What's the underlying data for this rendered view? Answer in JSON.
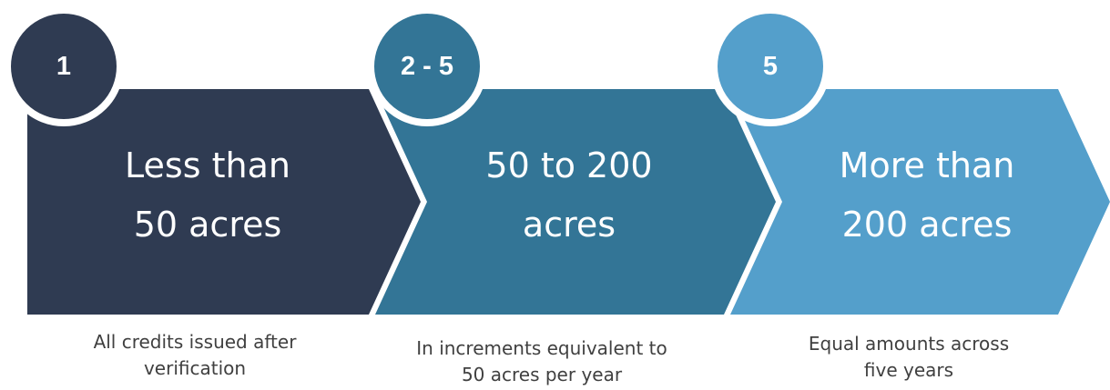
{
  "colors": {
    "step1": "#2f3b52",
    "step2": "#337596",
    "step3": "#549fcb",
    "badge_border": "#ffffff",
    "caption_text": "#404040"
  },
  "steps": [
    {
      "badge": "1",
      "title_line1": "Less than",
      "title_line2": "50 acres",
      "caption_line1": "All credits issued after",
      "caption_line2": "verification"
    },
    {
      "badge": "2 - 5",
      "title_line1": "50 to 200",
      "title_line2": "acres",
      "caption_line1": "In increments equivalent to",
      "caption_line2": "50 acres per year"
    },
    {
      "badge": "5",
      "title_line1": "More than",
      "title_line2": "200 acres",
      "caption_line1": "Equal amounts across",
      "caption_line2": "five years"
    }
  ]
}
